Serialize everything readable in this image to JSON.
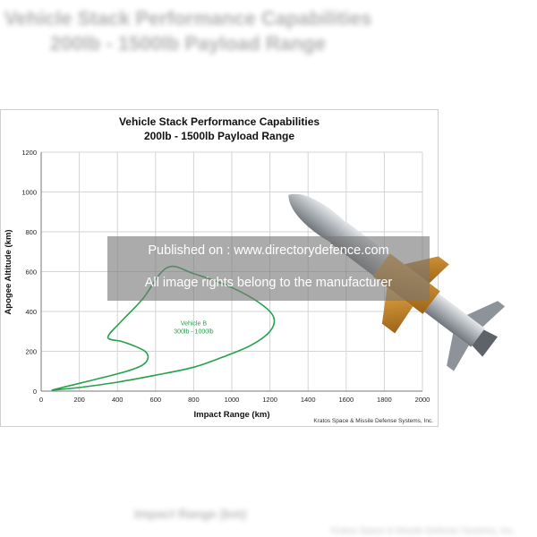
{
  "watermark": {
    "line1": "Published on : www.directorydefence.com",
    "line2": "All image rights belong to the manufacturer"
  },
  "credit": "Kratos Space & Missile Defense Systems, Inc.",
  "colors": {
    "curve": "#22a24a",
    "grid": "#d4d4d4",
    "watermark_bg": "#787878",
    "rocket_body": "#9aa0a6",
    "rocket_fins": "#c98a2a"
  },
  "icons": {
    "rocket": "rocket-illustration-icon"
  },
  "chart_data": {
    "type": "line",
    "title": "Vehicle Stack  Performance Capabilities",
    "subtitle": "200lb - 1500lb Payload Range",
    "xlabel": "Impact Range (km)",
    "ylabel": "Apogee Altitude (km)",
    "xlim": [
      0,
      2000
    ],
    "ylim": [
      0,
      1200
    ],
    "xticks": [
      "0",
      "200",
      "400",
      "600",
      "800",
      "1000",
      "1200",
      "1400",
      "1600",
      "1800",
      "2000"
    ],
    "yticks": [
      "0",
      "200",
      "400",
      "600",
      "800",
      "1000",
      "1200"
    ],
    "grid": true,
    "annotation": {
      "line1": "Vehicle B",
      "line2": "300lb - 1000lb",
      "x": 800,
      "y": 330
    },
    "series": [
      {
        "name": "",
        "points": [
          [
            55,
            5
          ],
          [
            140,
            25
          ],
          [
            290,
            60
          ],
          [
            450,
            100
          ],
          [
            530,
            130
          ],
          [
            560,
            165
          ],
          [
            545,
            200
          ],
          [
            480,
            230
          ],
          [
            420,
            250
          ],
          [
            350,
            270
          ],
          [
            420,
            350
          ],
          [
            530,
            460
          ],
          [
            660,
            620
          ],
          [
            800,
            590
          ],
          [
            1000,
            520
          ],
          [
            1150,
            440
          ],
          [
            1220,
            370
          ],
          [
            1200,
            300
          ],
          [
            1100,
            230
          ],
          [
            950,
            170
          ],
          [
            800,
            120
          ],
          [
            600,
            80
          ],
          [
            400,
            45
          ],
          [
            200,
            18
          ],
          [
            55,
            5
          ]
        ]
      }
    ]
  }
}
